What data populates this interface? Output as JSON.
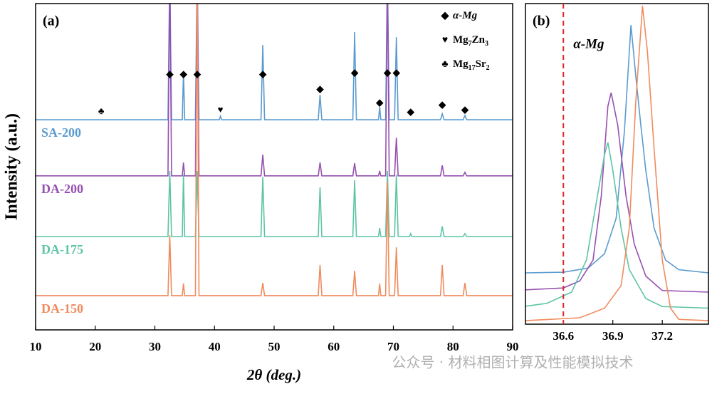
{
  "chart_data": [
    {
      "type": "line",
      "panel_label": "(a)",
      "xlabel": "2θ (deg.)",
      "ylabel": "Intensity (a.u.)",
      "xlim": [
        10,
        90
      ],
      "xticks": [
        10,
        20,
        30,
        40,
        50,
        60,
        70,
        80,
        90
      ],
      "ylim": [
        0,
        100
      ],
      "x": [
        10,
        20.8,
        21,
        21.2,
        32.2,
        32.5,
        32.8,
        34.6,
        34.8,
        35.0,
        36.8,
        37.1,
        37.4,
        40.8,
        41,
        41.2,
        47.8,
        48.1,
        48.4,
        57.4,
        57.7,
        58.0,
        63.2,
        63.5,
        63.8,
        67.5,
        67.7,
        67.9,
        68.7,
        69.0,
        69.3,
        70.2,
        70.5,
        70.8,
        72.7,
        72.9,
        73.1,
        77.9,
        78.2,
        78.5,
        81.7,
        82.0,
        82.3,
        90
      ],
      "series": [
        {
          "name": "SA-200",
          "color": "#5b9bd0",
          "values": [
            64.4,
            64.4,
            64.4,
            64.4,
            64.4,
            110,
            64.4,
            64.4,
            79.3,
            64.4,
            64.4,
            110,
            64.4,
            64.4,
            65.5,
            64.4,
            64.4,
            87.3,
            64.4,
            64.4,
            72,
            64.4,
            64.4,
            91.3,
            64.4,
            64.4,
            68.3,
            64.4,
            64.4,
            110,
            64.4,
            64.4,
            89.7,
            64.4,
            64.4,
            64.4,
            64.4,
            64.4,
            66.2,
            64.4,
            64.4,
            65.7,
            64.4,
            64.4
          ]
        },
        {
          "name": "DA-200",
          "color": "#9650b0",
          "values": [
            47.2,
            47.2,
            47.2,
            47.2,
            47.2,
            110,
            47.2,
            47.2,
            51.3,
            47.2,
            47.2,
            110,
            47.2,
            47.2,
            47.2,
            47.2,
            47.2,
            53.7,
            47.2,
            47.2,
            51.3,
            47.2,
            47.2,
            51.1,
            47.2,
            47.2,
            48.7,
            47.2,
            47.2,
            110,
            47.2,
            47.2,
            58.9,
            47.2,
            47.2,
            47.2,
            47.2,
            47.2,
            50.4,
            47.2,
            47.2,
            48.3,
            47.2,
            47.2
          ]
        },
        {
          "name": "DA-175",
          "color": "#5dc4a6",
          "values": [
            28.6,
            28.6,
            28.6,
            28.6,
            28.6,
            48.7,
            28.6,
            28.6,
            47.6,
            28.6,
            28.6,
            48.7,
            28.6,
            28.6,
            28.6,
            28.6,
            28.6,
            46.9,
            28.6,
            28.6,
            43.7,
            28.6,
            28.6,
            45.9,
            28.6,
            28.6,
            31.2,
            28.6,
            28.6,
            48.7,
            28.6,
            28.6,
            47.6,
            28.6,
            28.6,
            29.5,
            28.6,
            28.6,
            31.7,
            28.6,
            28.6,
            29.5,
            28.6,
            28.6
          ]
        },
        {
          "name": "DA-150",
          "color": "#f08b5e",
          "values": [
            10.5,
            10.5,
            10.5,
            10.5,
            10.5,
            29.0,
            10.5,
            10.5,
            14.2,
            10.5,
            10.5,
            110,
            10.5,
            10.5,
            10.5,
            10.5,
            10.5,
            14.4,
            10.5,
            10.5,
            19.9,
            10.5,
            10.5,
            18.1,
            10.5,
            10.5,
            14.2,
            10.5,
            10.5,
            45.4,
            10.5,
            10.5,
            25.3,
            10.5,
            10.5,
            10.5,
            10.5,
            10.5,
            19.9,
            10.5,
            10.5,
            14.4,
            10.5,
            10.5
          ]
        }
      ],
      "markers": [
        {
          "symbol": "♣",
          "x": 21,
          "y": 66.8
        },
        {
          "symbol": "◆",
          "x": 32.5,
          "y": 78.2
        },
        {
          "symbol": "◆",
          "x": 34.8,
          "y": 78.2
        },
        {
          "symbol": "◆",
          "x": 37.1,
          "y": 78.2
        },
        {
          "symbol": "♥",
          "x": 41,
          "y": 67.2
        },
        {
          "symbol": "◆",
          "x": 48.1,
          "y": 78.2
        },
        {
          "symbol": "◆",
          "x": 57.7,
          "y": 73.6
        },
        {
          "symbol": "◆",
          "x": 63.5,
          "y": 78.6
        },
        {
          "symbol": "◆",
          "x": 67.7,
          "y": 69.4
        },
        {
          "symbol": "◆",
          "x": 69.0,
          "y": 78.6
        },
        {
          "symbol": "◆",
          "x": 70.5,
          "y": 78.6
        },
        {
          "symbol": "◆",
          "x": 72.9,
          "y": 66.6
        },
        {
          "symbol": "◆",
          "x": 78.2,
          "y": 68.8
        },
        {
          "symbol": "◆",
          "x": 82.0,
          "y": 67.2
        }
      ],
      "legend": [
        {
          "symbol": "◆",
          "name": [
            "α-Mg"
          ]
        },
        {
          "symbol": "♥",
          "name": [
            "Mg",
            "7",
            "Zn",
            "3"
          ]
        },
        {
          "symbol": "♣",
          "name": [
            "Mg",
            "17",
            "Sr",
            "2"
          ]
        }
      ]
    },
    {
      "type": "line",
      "panel_label": "(b)",
      "xlim": [
        36.37,
        37.48
      ],
      "xticks": [
        36.6,
        36.9,
        37.2
      ],
      "ylim": [
        0,
        100
      ],
      "reference_line": {
        "x": 36.6,
        "label": "α-Mg",
        "color": "#d62728"
      },
      "series": [
        {
          "color": "#5b9bd0",
          "x": [
            36.37,
            36.6,
            36.75,
            36.85,
            36.92,
            36.97,
            37.01,
            37.04,
            37.07,
            37.1,
            37.15,
            37.22,
            37.3,
            37.48
          ],
          "values": [
            16,
            16.2,
            17.5,
            22,
            33,
            60,
            93.3,
            77,
            62,
            48,
            30,
            20,
            17,
            16
          ]
        },
        {
          "color": "#9650b0",
          "x": [
            36.37,
            36.6,
            36.7,
            36.78,
            36.83,
            36.87,
            36.89,
            36.93,
            36.98,
            37.03,
            37.1,
            37.2,
            37.48
          ],
          "values": [
            10.7,
            11.3,
            13.5,
            20,
            40,
            68,
            72.2,
            62,
            40,
            25,
            15,
            10.5,
            10
          ]
        },
        {
          "color": "#5dc4a6",
          "x": [
            36.37,
            36.5,
            36.65,
            36.74,
            36.8,
            36.85,
            36.87,
            36.9,
            36.95,
            37.0,
            37.1,
            37.2,
            37.48
          ],
          "values": [
            5.6,
            6.5,
            10,
            20,
            38,
            53,
            56.7,
            48,
            30,
            17,
            8,
            5.5,
            5
          ]
        },
        {
          "color": "#f08b5e",
          "x": [
            36.37,
            36.7,
            36.85,
            36.95,
            37.0,
            37.04,
            37.08,
            37.11,
            37.15,
            37.2,
            37.25,
            37.3,
            37.48
          ],
          "values": [
            1.1,
            2,
            5,
            12,
            30,
            70,
            99.3,
            85,
            55,
            20,
            5,
            1.5,
            1.1
          ]
        }
      ]
    }
  ],
  "watermark": "公众号 · 材料相图计算及性能模拟技术"
}
